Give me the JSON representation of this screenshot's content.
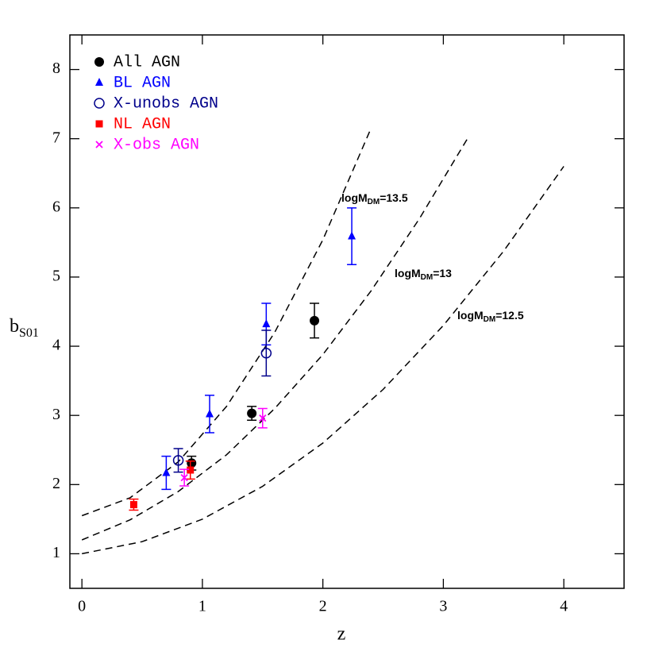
{
  "chart_data": {
    "type": "scatter",
    "x_label": "z",
    "y_label": {
      "main": "b",
      "sub": "S01"
    },
    "xlim": [
      -0.1,
      4.5
    ],
    "ylim": [
      0.5,
      8.5
    ],
    "xticks": [
      0,
      1,
      2,
      3,
      4
    ],
    "yticks": [
      1,
      2,
      3,
      4,
      5,
      6,
      7,
      8
    ],
    "legend": "upper left",
    "series": [
      {
        "name": "All AGN",
        "color": "#000000",
        "marker": "circle",
        "x": [
          0.91,
          1.41,
          1.93
        ],
        "values": [
          2.31,
          3.03,
          4.37
        ],
        "errors": [
          0.1,
          0.1,
          0.25
        ]
      },
      {
        "name": "BL AGN",
        "color": "#0000ff",
        "marker": "triangle",
        "x": [
          0.7,
          1.06,
          1.53,
          2.24
        ],
        "values": [
          2.17,
          3.02,
          4.32,
          5.59
        ],
        "errors": [
          0.24,
          0.27,
          0.3,
          0.41
        ]
      },
      {
        "name": "X-unobs AGN",
        "color": "#00008b",
        "marker": "open-circle",
        "x": [
          0.8,
          1.53
        ],
        "values": [
          2.35,
          3.9
        ],
        "errors": [
          0.17,
          0.33
        ]
      },
      {
        "name": "NL AGN",
        "color": "#ff0000",
        "marker": "square",
        "x": [
          0.43,
          0.9
        ],
        "values": [
          1.71,
          2.21
        ],
        "errors": [
          0.08,
          0.13
        ]
      },
      {
        "name": "X-obs AGN",
        "color": "#ff00ff",
        "marker": "cross",
        "x": [
          0.85,
          1.5
        ],
        "values": [
          2.1,
          2.96
        ],
        "errors": [
          0.12,
          0.14
        ]
      }
    ],
    "curves": [
      {
        "label": {
          "main": "logM",
          "sub": "DM",
          "suffix": "=13.5"
        },
        "color": "#000000",
        "style": "dashed",
        "x": [
          0,
          0.4,
          0.8,
          1.2,
          1.6,
          2.0,
          2.4
        ],
        "values": [
          1.55,
          1.81,
          2.33,
          3.13,
          4.2,
          5.54,
          7.15
        ]
      },
      {
        "label": {
          "main": "logM",
          "sub": "DM",
          "suffix": "=13"
        },
        "color": "#000000",
        "style": "dashed",
        "x": [
          0,
          0.4,
          0.8,
          1.2,
          1.6,
          2.0,
          2.4,
          2.8,
          3.2
        ],
        "values": [
          1.2,
          1.49,
          1.9,
          2.43,
          3.1,
          3.88,
          4.8,
          5.84,
          7.0
        ]
      },
      {
        "label": {
          "main": "logM",
          "sub": "DM",
          "suffix": "=12.5"
        },
        "color": "#000000",
        "style": "dashed",
        "x": [
          0,
          0.5,
          1,
          1.5,
          2,
          2.5,
          3,
          3.5,
          4
        ],
        "values": [
          1.0,
          1.175,
          1.5,
          1.975,
          2.6,
          3.375,
          4.3,
          5.375,
          6.6
        ]
      }
    ]
  }
}
